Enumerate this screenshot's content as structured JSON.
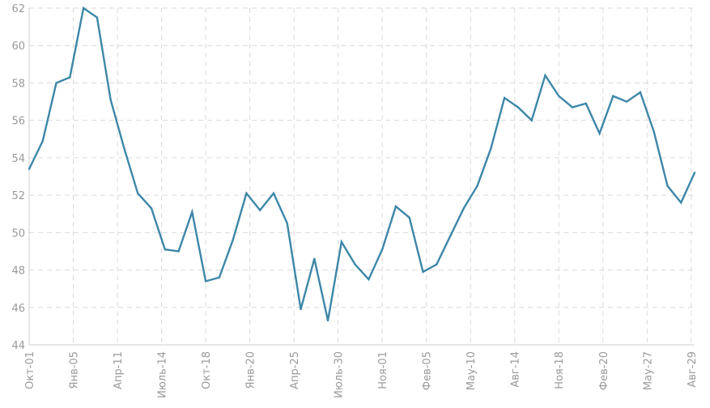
{
  "chart_data": {
    "type": "line",
    "title": "",
    "xlabel": "",
    "ylabel": "",
    "ylim": [
      44,
      62
    ],
    "yticks": [
      44,
      46,
      48,
      50,
      52,
      54,
      56,
      58,
      60,
      62
    ],
    "grid": true,
    "line_color": "#3d87a8",
    "x_tick_labels": [
      "Окт-01",
      "Янв-05",
      "Апр-11",
      "Июль-14",
      "Окт-18",
      "Янв-20",
      "Апр-25",
      "Июль-30",
      "Ноя-01",
      "Фев-05",
      "Мау-10",
      "Авг-14",
      "Ноя-18",
      "Фев-20",
      "Мау-27",
      "Авг-29"
    ],
    "series": [
      {
        "values": [
          53.4,
          54.9,
          58.0,
          58.3,
          62.0,
          61.5,
          57.1,
          54.5,
          52.1,
          51.3,
          49.1,
          49.0,
          51.1,
          47.4,
          47.6,
          49.6,
          52.1,
          51.2,
          52.1,
          50.5,
          45.9,
          48.6,
          45.3,
          49.5,
          48.3,
          47.5,
          49.1,
          51.4,
          50.8,
          47.9,
          48.3,
          49.8,
          51.3,
          52.5,
          54.5,
          57.2,
          56.7,
          56.0,
          58.4,
          57.3,
          56.7,
          56.9,
          55.3,
          57.3,
          57.0,
          57.5,
          55.4,
          52.5,
          51.6,
          53.2
        ]
      }
    ]
  }
}
